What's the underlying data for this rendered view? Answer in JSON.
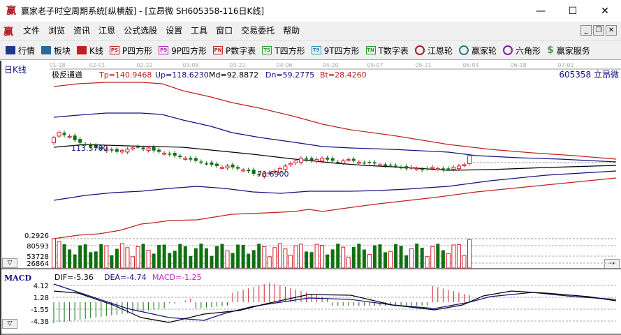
{
  "window": {
    "title": "赢家老子时空周期系统[纵横版] - [立昂微  SH605358-116日K线]",
    "app_icon": "赢",
    "controls": {
      "minimize": "—",
      "maximize": "☐",
      "close": "✕"
    }
  },
  "menubar": {
    "logo": "赢",
    "items": [
      "文件",
      "浏览",
      "资讯",
      "江恩",
      "公式选股",
      "设置",
      "工具",
      "窗口",
      "交易委托",
      "帮助"
    ],
    "mdi_controls": [
      "_",
      "❐",
      "✕"
    ]
  },
  "toolbar": {
    "items": [
      {
        "label": "行情",
        "icon": "grid-table-icon",
        "badge": "",
        "color": "#1a3a8a"
      },
      {
        "label": "板块",
        "icon": "blocks-icon",
        "badge": "",
        "color": "#2a6a9a"
      },
      {
        "label": "K线",
        "icon": "candlestick-icon",
        "badge": "",
        "color": "#c02020"
      },
      {
        "label": "P四方形",
        "icon": "ps-icon",
        "badge": "PS",
        "color": "#c02020"
      },
      {
        "label": "9P四方形",
        "icon": "p9-icon",
        "badge": "P9",
        "color": "#c020c0"
      },
      {
        "label": "P数字表",
        "icon": "pn-icon",
        "badge": "PN",
        "color": "#c02020"
      },
      {
        "label": "T四方形",
        "icon": "ts-icon",
        "badge": "TS",
        "color": "#20a020"
      },
      {
        "label": "9T四方形",
        "icon": "t9-icon",
        "badge": "T9",
        "color": "#2090c0"
      },
      {
        "label": "T数字表",
        "icon": "tn-icon",
        "badge": "TN",
        "color": "#20a020"
      },
      {
        "label": "江恩轮",
        "icon": "gann-wheel-icon",
        "badge": "",
        "color": "#a02020"
      },
      {
        "label": "赢家轮",
        "icon": "winner-wheel-icon",
        "badge": "",
        "color": "#208080"
      },
      {
        "label": "六角形",
        "icon": "hexagon-icon",
        "badge": "",
        "color": "#8020a0"
      },
      {
        "label": "赢家服务",
        "icon": "dollar-icon",
        "badge": "$",
        "color": "#40a040"
      }
    ]
  },
  "chart": {
    "period_label": "日K线",
    "indicator_name": "极反通道",
    "stock_code": "605358",
    "stock_name": "立昂微",
    "params": {
      "tp": "Tp=140.9468",
      "up": "Up=118.6230",
      "md": "Md=92.8872",
      "dn": "Dn=59.2775",
      "bt": "Bt=28.4260"
    },
    "date_ticks": [
      "01-18",
      "02-01",
      "02-22",
      "03-08",
      "03-22",
      "04-06",
      "04-20",
      "05-07",
      "05-21",
      "06-04",
      "06-18",
      "07-02"
    ],
    "high_label": "113.5700",
    "low_label": "70.6900",
    "price_axis_label": "0.2926",
    "colors": {
      "up": "#d02030",
      "down": "#107010",
      "tp": "#c02020",
      "upper": "#101080",
      "md": "#000000",
      "grid": "#999999"
    }
  },
  "volume": {
    "ticks": [
      "80593",
      "53728",
      "26864"
    ]
  },
  "macd": {
    "label": "MACD",
    "dif": "DIF=-5.36",
    "dea": "DEA=-4.74",
    "macd": "MACD=-1.25",
    "ticks": [
      "4.12",
      "1.28",
      "-1.55",
      "-4.38"
    ]
  },
  "chart_data": {
    "type": "candlestick",
    "title": "立昂微 SH605358 日K线 极反通道",
    "x_ticks": [
      "01-18",
      "02-01",
      "02-22",
      "03-08",
      "03-22",
      "04-06",
      "04-20",
      "05-07",
      "05-21",
      "06-04",
      "06-18",
      "07-02"
    ],
    "indicator_values": {
      "Tp": 140.9468,
      "Up": 118.623,
      "Md": 92.8872,
      "Dn": 59.2775,
      "Bt": 28.426
    },
    "annotations": [
      {
        "text": "113.5700",
        "type": "high"
      },
      {
        "text": "70.6900",
        "type": "low"
      }
    ],
    "volume_ticks": [
      80593,
      53728,
      26864
    ],
    "macd": {
      "DIF": -5.36,
      "DEA": -4.74,
      "MACD": -1.25,
      "ticks": [
        4.12,
        1.28,
        -1.55,
        -4.38
      ]
    },
    "close_approx": [
      108,
      112,
      110,
      109,
      106,
      104,
      103,
      101,
      100,
      99,
      99,
      98,
      97,
      98,
      99,
      100,
      101,
      99,
      100,
      98,
      97,
      96,
      95,
      94,
      93,
      92,
      91,
      90,
      89,
      88,
      87,
      86,
      85,
      86,
      85,
      84,
      83,
      82,
      80,
      79,
      80,
      81,
      82,
      84,
      86,
      88,
      90,
      92,
      91,
      90,
      91,
      92,
      91,
      90,
      89,
      90,
      91,
      90,
      89,
      88,
      89,
      88,
      87,
      86,
      87,
      86,
      85,
      84,
      85,
      84,
      83,
      84,
      85,
      84,
      83,
      84,
      85,
      86,
      87,
      94
    ]
  }
}
